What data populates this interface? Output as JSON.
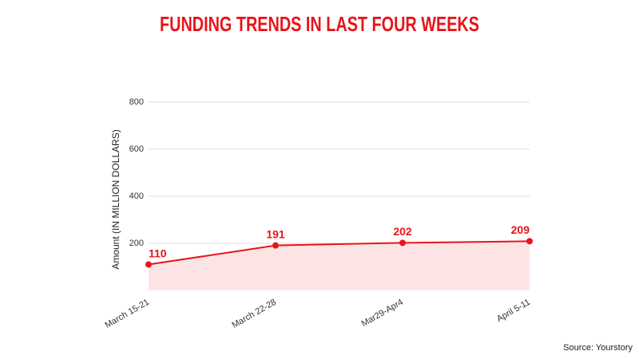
{
  "chart_data": {
    "type": "area",
    "title": "FUNDING TRENDS IN LAST FOUR WEEKS",
    "y_label": "Amount (IN MILLION DOLLARS)",
    "categories": [
      "March 15-21",
      "March 22-28",
      "Mar29-Apr4",
      "April 5-11"
    ],
    "values": [
      110,
      191,
      202,
      209
    ],
    "color": "#e8141b",
    "fill": "#fde4e4",
    "ylim": [
      0,
      800
    ],
    "yticks": [
      200,
      400,
      600,
      800
    ],
    "grid": true,
    "source": "Source: Yourstory"
  }
}
